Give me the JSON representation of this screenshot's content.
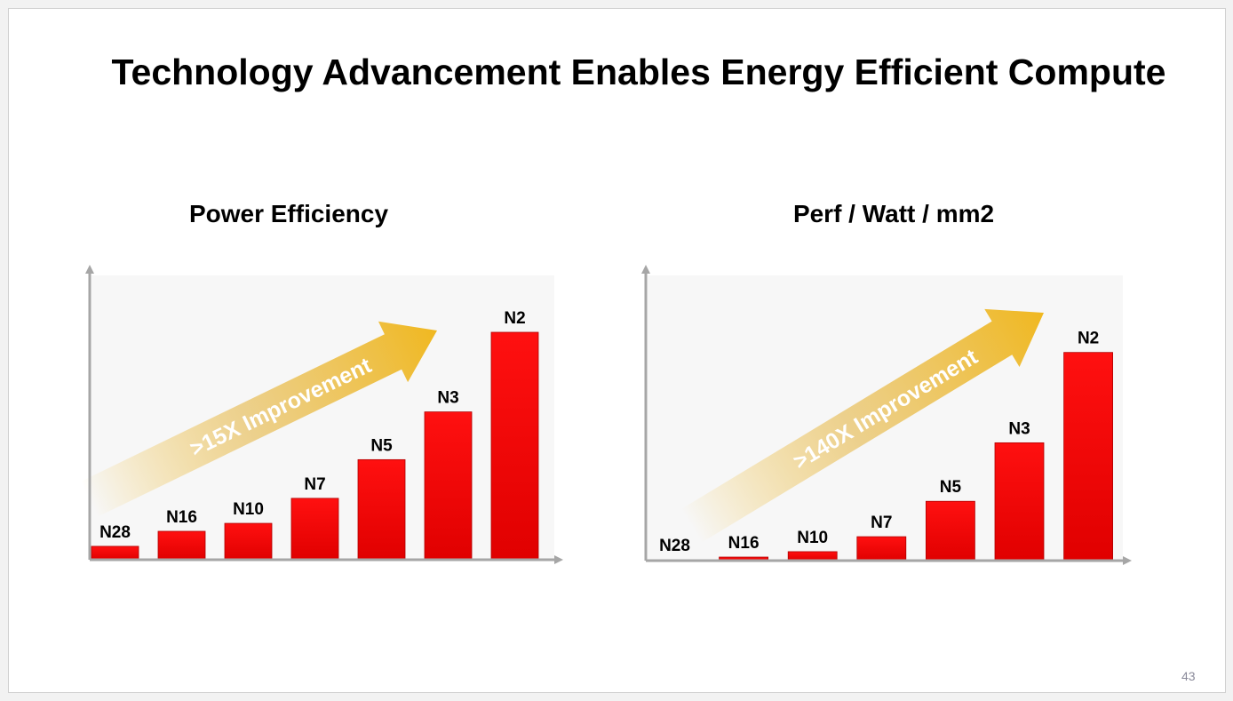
{
  "slide": {
    "title": "Technology Advancement Enables Energy Efficient Compute",
    "page_number": "43"
  },
  "colors": {
    "bar": "#ff0000",
    "arrow": "#f0b820",
    "axis": "#a6a6a6"
  },
  "chart_data": [
    {
      "type": "bar",
      "title": "Power Efficiency",
      "categories": [
        "N28",
        "N16",
        "N10",
        "N7",
        "N5",
        "N3",
        "N2"
      ],
      "values": [
        5.9,
        12.5,
        16,
        27,
        44,
        65,
        100
      ],
      "ylim": [
        0,
        125
      ],
      "annotation": ">15X Improvement",
      "grid": false,
      "xlabel": "",
      "ylabel": ""
    },
    {
      "type": "bar",
      "title": "Perf / Watt / mm2",
      "categories": [
        "N28",
        "N16",
        "N10",
        "N7",
        "N5",
        "N3",
        "N2"
      ],
      "values": [
        0.4,
        1.7,
        4.3,
        11.5,
        28.5,
        56.6,
        100
      ],
      "ylim": [
        0,
        137
      ],
      "annotation": ">140X Improvement",
      "grid": false,
      "xlabel": "",
      "ylabel": ""
    }
  ]
}
